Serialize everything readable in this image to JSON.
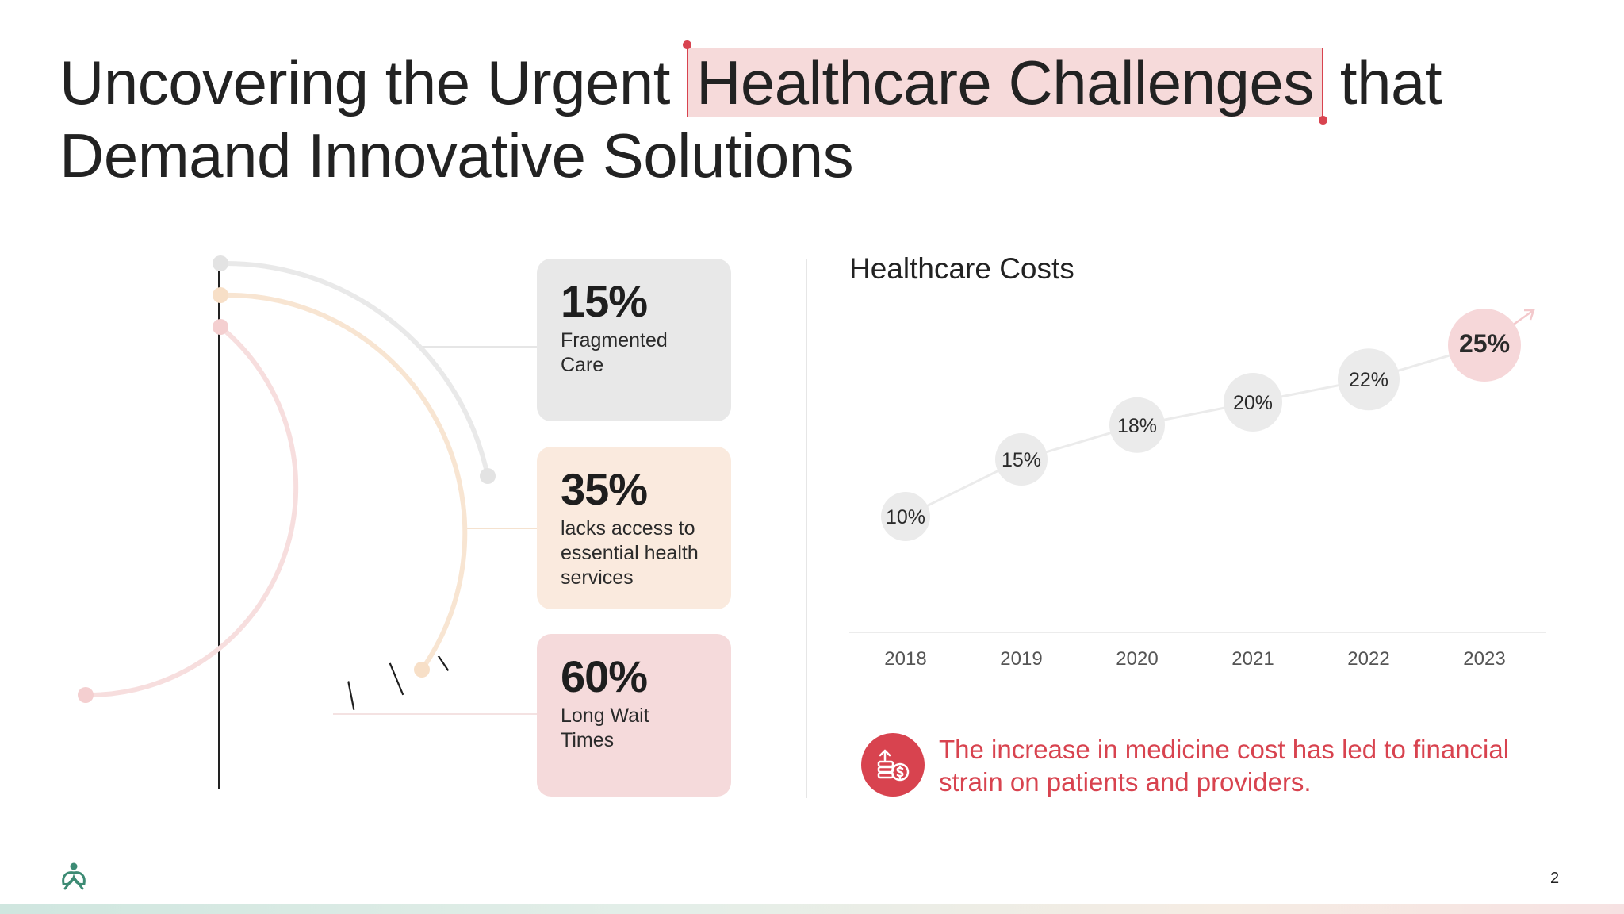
{
  "title": {
    "before": "Uncovering the Urgent",
    "highlight": "Healthcare Challenges",
    "after": "that",
    "line2": "Demand Innovative Solutions"
  },
  "stats": [
    {
      "pct": "15%",
      "label": "Fragmented Care",
      "bg": "#e8e8e8"
    },
    {
      "pct": "35%",
      "label": "lacks access to essential health services",
      "bg": "#faeade"
    },
    {
      "pct": "60%",
      "label": "Long Wait Times",
      "bg": "#f5dadb"
    }
  ],
  "chart_data": {
    "type": "line",
    "title": "Healthcare Costs",
    "categories": [
      "2018",
      "2019",
      "2020",
      "2021",
      "2022",
      "2023"
    ],
    "series": [
      {
        "values": [
          10,
          15,
          18,
          20,
          22,
          25
        ],
        "labels": [
          "10%",
          "15%",
          "18%",
          "20%",
          "22%",
          "25%"
        ]
      }
    ],
    "xlabel": "",
    "ylabel": "",
    "grid": false,
    "highlight_last": true
  },
  "note": {
    "text": "The increase in medicine cost has led to financial strain on patients and providers."
  },
  "page_number": "2",
  "colors": {
    "accent": "#d8434f",
    "highlight_bg": "#f6dada",
    "neutral_marker": "#ebebeb",
    "logo_green": "#3d8b74"
  }
}
